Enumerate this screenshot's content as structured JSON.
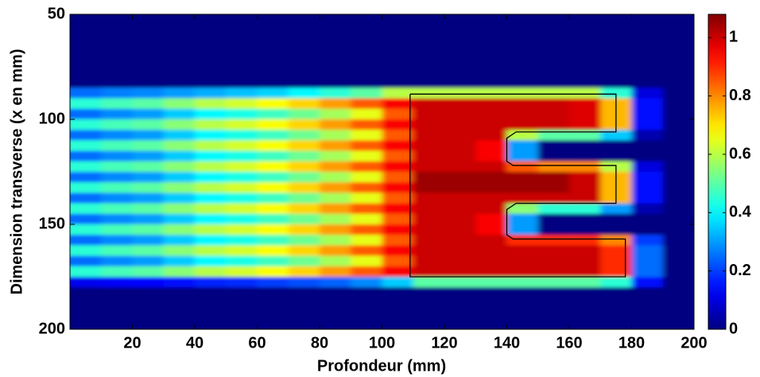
{
  "chart_data": {
    "type": "heatmap",
    "xlabel": "Profondeur (mm)",
    "ylabel": "Dimension transverse (x en mm)",
    "xlim": [
      0,
      200
    ],
    "ylim": [
      50,
      200
    ],
    "y_reversed": true,
    "xticks": [
      20,
      40,
      60,
      80,
      100,
      120,
      140,
      160,
      180,
      200
    ],
    "yticks": [
      50,
      100,
      150,
      200
    ],
    "clim": [
      0,
      1.08
    ],
    "cticks": [
      0,
      0.2,
      0.4,
      0.6,
      0.8,
      1
    ],
    "colormap": "jet",
    "x": [
      5,
      15,
      25,
      35,
      45,
      55,
      65,
      75,
      85,
      95,
      105,
      115,
      125,
      135,
      145,
      155,
      165,
      175,
      185,
      195
    ],
    "y": [
      52.5,
      57.5,
      62.5,
      67.5,
      72.5,
      77.5,
      82.5,
      87.5,
      92.5,
      97.5,
      102.5,
      107.5,
      112.5,
      117.5,
      122.5,
      127.5,
      132.5,
      137.5,
      142.5,
      147.5,
      152.5,
      157.5,
      162.5,
      167.5,
      172.5,
      177.5,
      182.5,
      187.5,
      192.5,
      197.5
    ],
    "z": [
      [
        0,
        0,
        0,
        0,
        0,
        0,
        0,
        0,
        0,
        0,
        0,
        0,
        0,
        0,
        0,
        0,
        0,
        0,
        0,
        0
      ],
      [
        0,
        0,
        0,
        0,
        0,
        0,
        0,
        0,
        0,
        0,
        0,
        0,
        0,
        0,
        0,
        0,
        0,
        0,
        0,
        0
      ],
      [
        0,
        0,
        0,
        0,
        0,
        0,
        0,
        0,
        0,
        0,
        0,
        0,
        0,
        0,
        0,
        0,
        0,
        0,
        0,
        0
      ],
      [
        0,
        0,
        0,
        0,
        0,
        0,
        0,
        0,
        0,
        0,
        0,
        0,
        0,
        0,
        0,
        0,
        0,
        0,
        0,
        0
      ],
      [
        0,
        0,
        0,
        0,
        0,
        0,
        0,
        0,
        0,
        0,
        0,
        0,
        0,
        0,
        0,
        0,
        0,
        0,
        0,
        0
      ],
      [
        0,
        0,
        0,
        0,
        0,
        0,
        0,
        0,
        0,
        0,
        0,
        0,
        0,
        0,
        0,
        0,
        0,
        0,
        0,
        0
      ],
      [
        0,
        0,
        0,
        0,
        0,
        0,
        0,
        0,
        0,
        0,
        0,
        0,
        0,
        0,
        0,
        0,
        0,
        0,
        0,
        0
      ],
      [
        0.25,
        0.27,
        0.28,
        0.3,
        0.32,
        0.34,
        0.36,
        0.4,
        0.45,
        0.5,
        0.6,
        0.6,
        0.6,
        0.6,
        0.6,
        0.6,
        0.6,
        0.45,
        0.1,
        0
      ],
      [
        0.45,
        0.48,
        0.5,
        0.55,
        0.6,
        0.63,
        0.67,
        0.72,
        0.78,
        0.85,
        0.95,
        1,
        1,
        1,
        1,
        1,
        0.98,
        0.75,
        0.15,
        0
      ],
      [
        0.25,
        0.28,
        0.3,
        0.35,
        0.4,
        0.43,
        0.47,
        0.52,
        0.58,
        0.65,
        0.85,
        1,
        1,
        1,
        1,
        1,
        0.98,
        0.75,
        0.15,
        0
      ],
      [
        0.45,
        0.48,
        0.5,
        0.55,
        0.6,
        0.63,
        0.67,
        0.72,
        0.78,
        0.85,
        0.95,
        1,
        1,
        1,
        1,
        1,
        0.98,
        0.75,
        0.15,
        0
      ],
      [
        0.25,
        0.28,
        0.3,
        0.35,
        0.4,
        0.43,
        0.47,
        0.52,
        0.58,
        0.65,
        0.85,
        1,
        1,
        1,
        0.6,
        0.5,
        0.5,
        0.35,
        0.05,
        0
      ],
      [
        0.45,
        0.48,
        0.5,
        0.55,
        0.6,
        0.63,
        0.67,
        0.72,
        0.78,
        0.85,
        0.95,
        1,
        1,
        0.95,
        0.3,
        0,
        0,
        0,
        0,
        0
      ],
      [
        0.25,
        0.28,
        0.3,
        0.35,
        0.4,
        0.43,
        0.47,
        0.52,
        0.58,
        0.65,
        0.85,
        1,
        1,
        0.95,
        0.3,
        0,
        0,
        0,
        0,
        0
      ],
      [
        0.45,
        0.48,
        0.5,
        0.55,
        0.6,
        0.63,
        0.67,
        0.72,
        0.78,
        0.85,
        0.95,
        1,
        1,
        1,
        0.85,
        0.8,
        0.8,
        0.6,
        0.1,
        0
      ],
      [
        0.25,
        0.28,
        0.3,
        0.35,
        0.4,
        0.43,
        0.47,
        0.52,
        0.58,
        0.65,
        0.85,
        1.05,
        1.05,
        1.05,
        1.05,
        1.05,
        1,
        0.75,
        0.15,
        0
      ],
      [
        0.45,
        0.48,
        0.5,
        0.55,
        0.6,
        0.63,
        0.67,
        0.72,
        0.78,
        0.85,
        0.95,
        1.05,
        1.05,
        1.05,
        1.05,
        1.05,
        1,
        0.75,
        0.15,
        0
      ],
      [
        0.25,
        0.28,
        0.3,
        0.35,
        0.4,
        0.43,
        0.47,
        0.52,
        0.58,
        0.65,
        0.85,
        1,
        1,
        1,
        1,
        1,
        1,
        0.75,
        0.15,
        0
      ],
      [
        0.45,
        0.48,
        0.5,
        0.55,
        0.6,
        0.63,
        0.67,
        0.72,
        0.78,
        0.85,
        0.95,
        1,
        1,
        1,
        0.55,
        0.45,
        0.45,
        0.3,
        0.05,
        0
      ],
      [
        0.25,
        0.28,
        0.3,
        0.35,
        0.4,
        0.43,
        0.47,
        0.52,
        0.58,
        0.65,
        0.85,
        1,
        1,
        0.95,
        0.3,
        0,
        0,
        0,
        0,
        0
      ],
      [
        0.45,
        0.48,
        0.5,
        0.55,
        0.6,
        0.63,
        0.67,
        0.72,
        0.78,
        0.85,
        0.95,
        1,
        1,
        0.95,
        0.3,
        0,
        0,
        0,
        0,
        0
      ],
      [
        0.25,
        0.28,
        0.3,
        0.35,
        0.4,
        0.43,
        0.47,
        0.52,
        0.58,
        0.65,
        0.85,
        1,
        1,
        1,
        0.9,
        0.9,
        0.9,
        0.8,
        0.2,
        0
      ],
      [
        0.45,
        0.48,
        0.5,
        0.55,
        0.6,
        0.63,
        0.67,
        0.72,
        0.78,
        0.85,
        0.95,
        1,
        1,
        1,
        1,
        1,
        1,
        0.9,
        0.25,
        0
      ],
      [
        0.25,
        0.28,
        0.3,
        0.35,
        0.4,
        0.43,
        0.47,
        0.52,
        0.58,
        0.65,
        0.85,
        1,
        1,
        1,
        1,
        1,
        1,
        0.9,
        0.25,
        0
      ],
      [
        0.45,
        0.48,
        0.5,
        0.55,
        0.6,
        0.63,
        0.67,
        0.72,
        0.78,
        0.85,
        0.95,
        1,
        1,
        1,
        1,
        1,
        1,
        0.9,
        0.25,
        0
      ],
      [
        0.12,
        0.13,
        0.14,
        0.15,
        0.17,
        0.18,
        0.2,
        0.22,
        0.24,
        0.28,
        0.35,
        0.5,
        0.5,
        0.5,
        0.5,
        0.5,
        0.5,
        0.45,
        0.15,
        0
      ],
      [
        0,
        0,
        0,
        0,
        0,
        0,
        0,
        0,
        0,
        0,
        0,
        0,
        0,
        0,
        0,
        0,
        0,
        0,
        0,
        0
      ],
      [
        0,
        0,
        0,
        0,
        0,
        0,
        0,
        0,
        0,
        0,
        0,
        0,
        0,
        0,
        0,
        0,
        0,
        0,
        0,
        0
      ],
      [
        0,
        0,
        0,
        0,
        0,
        0,
        0,
        0,
        0,
        0,
        0,
        0,
        0,
        0,
        0,
        0,
        0,
        0,
        0,
        0
      ],
      [
        0,
        0,
        0,
        0,
        0,
        0,
        0,
        0,
        0,
        0,
        0,
        0,
        0,
        0,
        0,
        0,
        0,
        0,
        0,
        0
      ]
    ],
    "outline": {
      "x": [
        109,
        175,
        175,
        143,
        140,
        140,
        142,
        175,
        175,
        143,
        140,
        140,
        142,
        178,
        178,
        109,
        109
      ],
      "y": [
        88,
        88,
        106,
        106,
        109,
        120,
        122,
        122,
        140,
        140,
        143,
        155,
        157,
        157,
        175,
        175,
        88
      ]
    },
    "outline_color": "#000000"
  }
}
